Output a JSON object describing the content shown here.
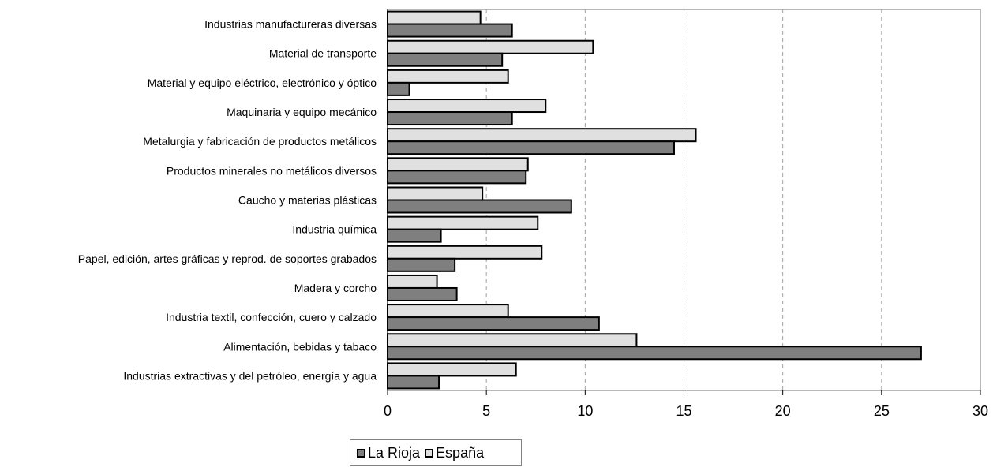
{
  "chart_data": {
    "type": "bar",
    "orientation": "horizontal",
    "categories": [
      "Industrias manufactureras diversas",
      "Material de transporte",
      "Material y equipo eléctrico, electrónico y óptico",
      "Maquinaria y equipo mecánico",
      "Metalurgia y fabricación de productos metálicos",
      "Productos minerales no metálicos diversos",
      "Caucho y materias plásticas",
      "Industria química",
      "Papel, edición, artes gráficas y reprod. de soportes grabados",
      "Madera y corcho",
      "Industria textil, confección, cuero y calzado",
      "Alimentación, bebidas y tabaco",
      "Industrias extractivas y del petróleo, energía y agua"
    ],
    "series": [
      {
        "name": "España",
        "color": "#e0e0e0",
        "values": [
          4.7,
          10.4,
          6.1,
          8.0,
          15.6,
          7.1,
          4.8,
          7.6,
          7.8,
          2.5,
          6.1,
          12.6,
          6.5
        ]
      },
      {
        "name": "La Rioja",
        "color": "#7f7f7f",
        "values": [
          6.3,
          5.8,
          1.1,
          6.3,
          14.5,
          7.0,
          9.3,
          2.7,
          3.4,
          3.5,
          10.7,
          27.0,
          2.6
        ]
      }
    ],
    "xlim": [
      0,
      30
    ],
    "xticks": [
      0,
      5,
      10,
      15,
      20,
      25,
      30
    ],
    "grid": "vertical dashed",
    "legend_position": "bottom",
    "legend": [
      "La Rioja",
      "España"
    ]
  }
}
